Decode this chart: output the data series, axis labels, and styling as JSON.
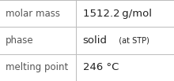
{
  "rows": [
    {
      "label": "molar mass",
      "value_parts": [
        {
          "text": "1512.2 g/mol",
          "bold": false,
          "size": 9.5
        }
      ]
    },
    {
      "label": "phase",
      "value_parts": [
        {
          "text": "solid",
          "bold": false,
          "size": 9.5
        },
        {
          "text": "  (at STP)",
          "bold": false,
          "size": 7.0
        }
      ]
    },
    {
      "label": "melting point",
      "value_parts": [
        {
          "text": "246 °C",
          "bold": false,
          "size": 9.5
        }
      ]
    }
  ],
  "background_color": "#ffffff",
  "border_color": "#bbbbbb",
  "label_color": "#555555",
  "value_color": "#222222",
  "label_fontsize": 8.5,
  "col_split": 0.435,
  "fig_width": 2.2,
  "fig_height": 1.03,
  "dpi": 100
}
